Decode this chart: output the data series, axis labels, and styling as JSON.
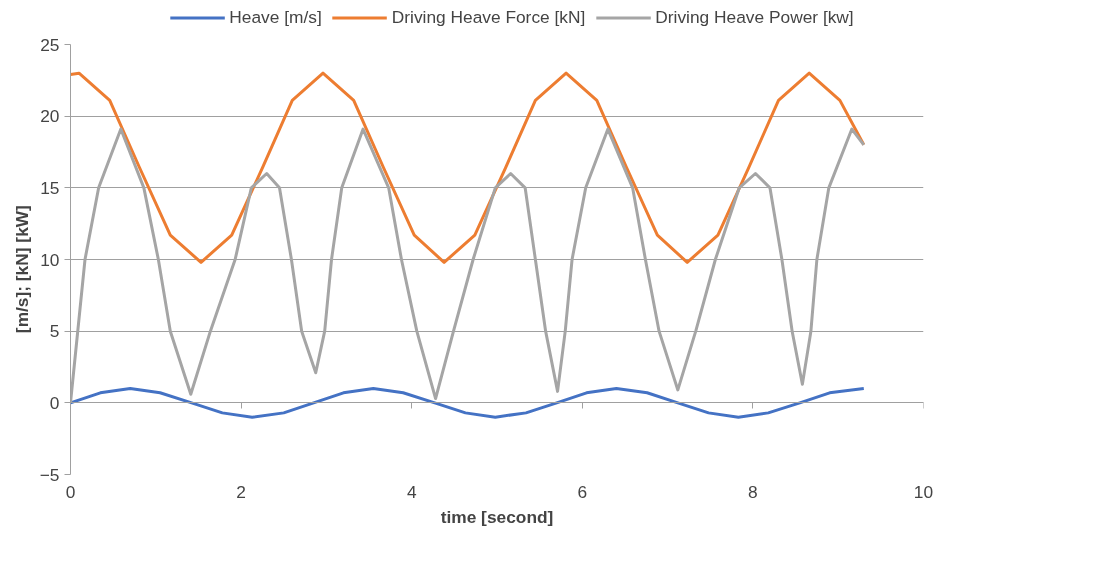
{
  "chart_data": {
    "type": "line",
    "xlabel": "time [second]",
    "ylabel": "[m/s];    [kN]  [kW]",
    "xlim": [
      0,
      10
    ],
    "xticks": [
      0,
      2,
      4,
      6,
      8,
      10
    ],
    "ylim": [
      -5,
      25
    ],
    "yticks": [
      -5,
      0,
      5,
      10,
      15,
      20,
      25
    ],
    "grid": "y",
    "legend": "top",
    "line_style": "solid",
    "marker": "none",
    "series": [
      {
        "name": "Heave [m/s]",
        "color": "#4472c4",
        "x": [
          0,
          0.35,
          0.7,
          1.05,
          1.42,
          1.78,
          2.13,
          2.5,
          2.85,
          3.2,
          3.55,
          3.9,
          4.27,
          4.63,
          4.98,
          5.34,
          5.7,
          6.05,
          6.4,
          6.76,
          7.12,
          7.48,
          7.83,
          8.18,
          8.55,
          8.9,
          9.3
        ],
        "values": [
          0,
          0.7,
          1.0,
          0.7,
          0,
          -0.7,
          -1.0,
          -0.7,
          0,
          0.7,
          1.0,
          0.7,
          0,
          -0.7,
          -1.0,
          -0.7,
          0,
          0.7,
          1.0,
          0.7,
          0,
          -0.7,
          -1.0,
          -0.7,
          0,
          0.7,
          1.0
        ]
      },
      {
        "name": "Driving Heave Force [kN]",
        "color": "#ed7d31",
        "x": [
          0,
          0.1,
          0.46,
          0.81,
          1.17,
          1.53,
          1.89,
          2.25,
          2.6,
          2.96,
          3.32,
          3.67,
          4.03,
          4.38,
          4.74,
          5.1,
          5.45,
          5.81,
          6.17,
          6.52,
          6.88,
          7.23,
          7.59,
          7.95,
          8.3,
          8.66,
          9.02,
          9.3
        ],
        "values": [
          22.9,
          23,
          21.1,
          16.4,
          11.7,
          9.8,
          11.7,
          16.4,
          21.1,
          23,
          21.1,
          16.4,
          11.7,
          9.8,
          11.7,
          16.4,
          21.1,
          23,
          21.1,
          16.4,
          11.7,
          9.8,
          11.7,
          16.4,
          21.1,
          23,
          21.1,
          18
        ]
      },
      {
        "name": "Driving Heave Power [kw]",
        "color": "#a5a5a5",
        "x": [
          0,
          0.17,
          0.33,
          0.59,
          0.86,
          1.03,
          1.17,
          1.41,
          1.64,
          1.93,
          2.12,
          2.3,
          2.45,
          2.59,
          2.71,
          2.875,
          2.98,
          3.06,
          3.18,
          3.43,
          3.73,
          3.88,
          4.06,
          4.28,
          4.49,
          4.72,
          4.98,
          5.16,
          5.33,
          5.45,
          5.57,
          5.71,
          5.8,
          5.88,
          6.04,
          6.3,
          6.59,
          6.74,
          6.9,
          7.12,
          7.33,
          7.56,
          7.84,
          8.03,
          8.2,
          8.34,
          8.46,
          8.58,
          8.68,
          8.75,
          8.89,
          9.16,
          9.3
        ],
        "values": [
          0,
          10,
          15,
          19.1,
          15,
          10,
          5,
          0.6,
          5,
          10,
          15,
          16,
          15,
          10,
          5,
          2.1,
          5,
          10,
          15,
          19.1,
          15,
          10,
          5,
          0.3,
          5,
          10,
          15,
          16,
          15,
          10,
          5,
          0.8,
          5,
          10,
          15,
          19.1,
          15,
          10,
          5,
          0.9,
          5,
          10,
          15,
          16,
          15,
          10,
          5,
          1.3,
          5,
          10,
          15,
          19.1,
          18
        ]
      }
    ]
  }
}
